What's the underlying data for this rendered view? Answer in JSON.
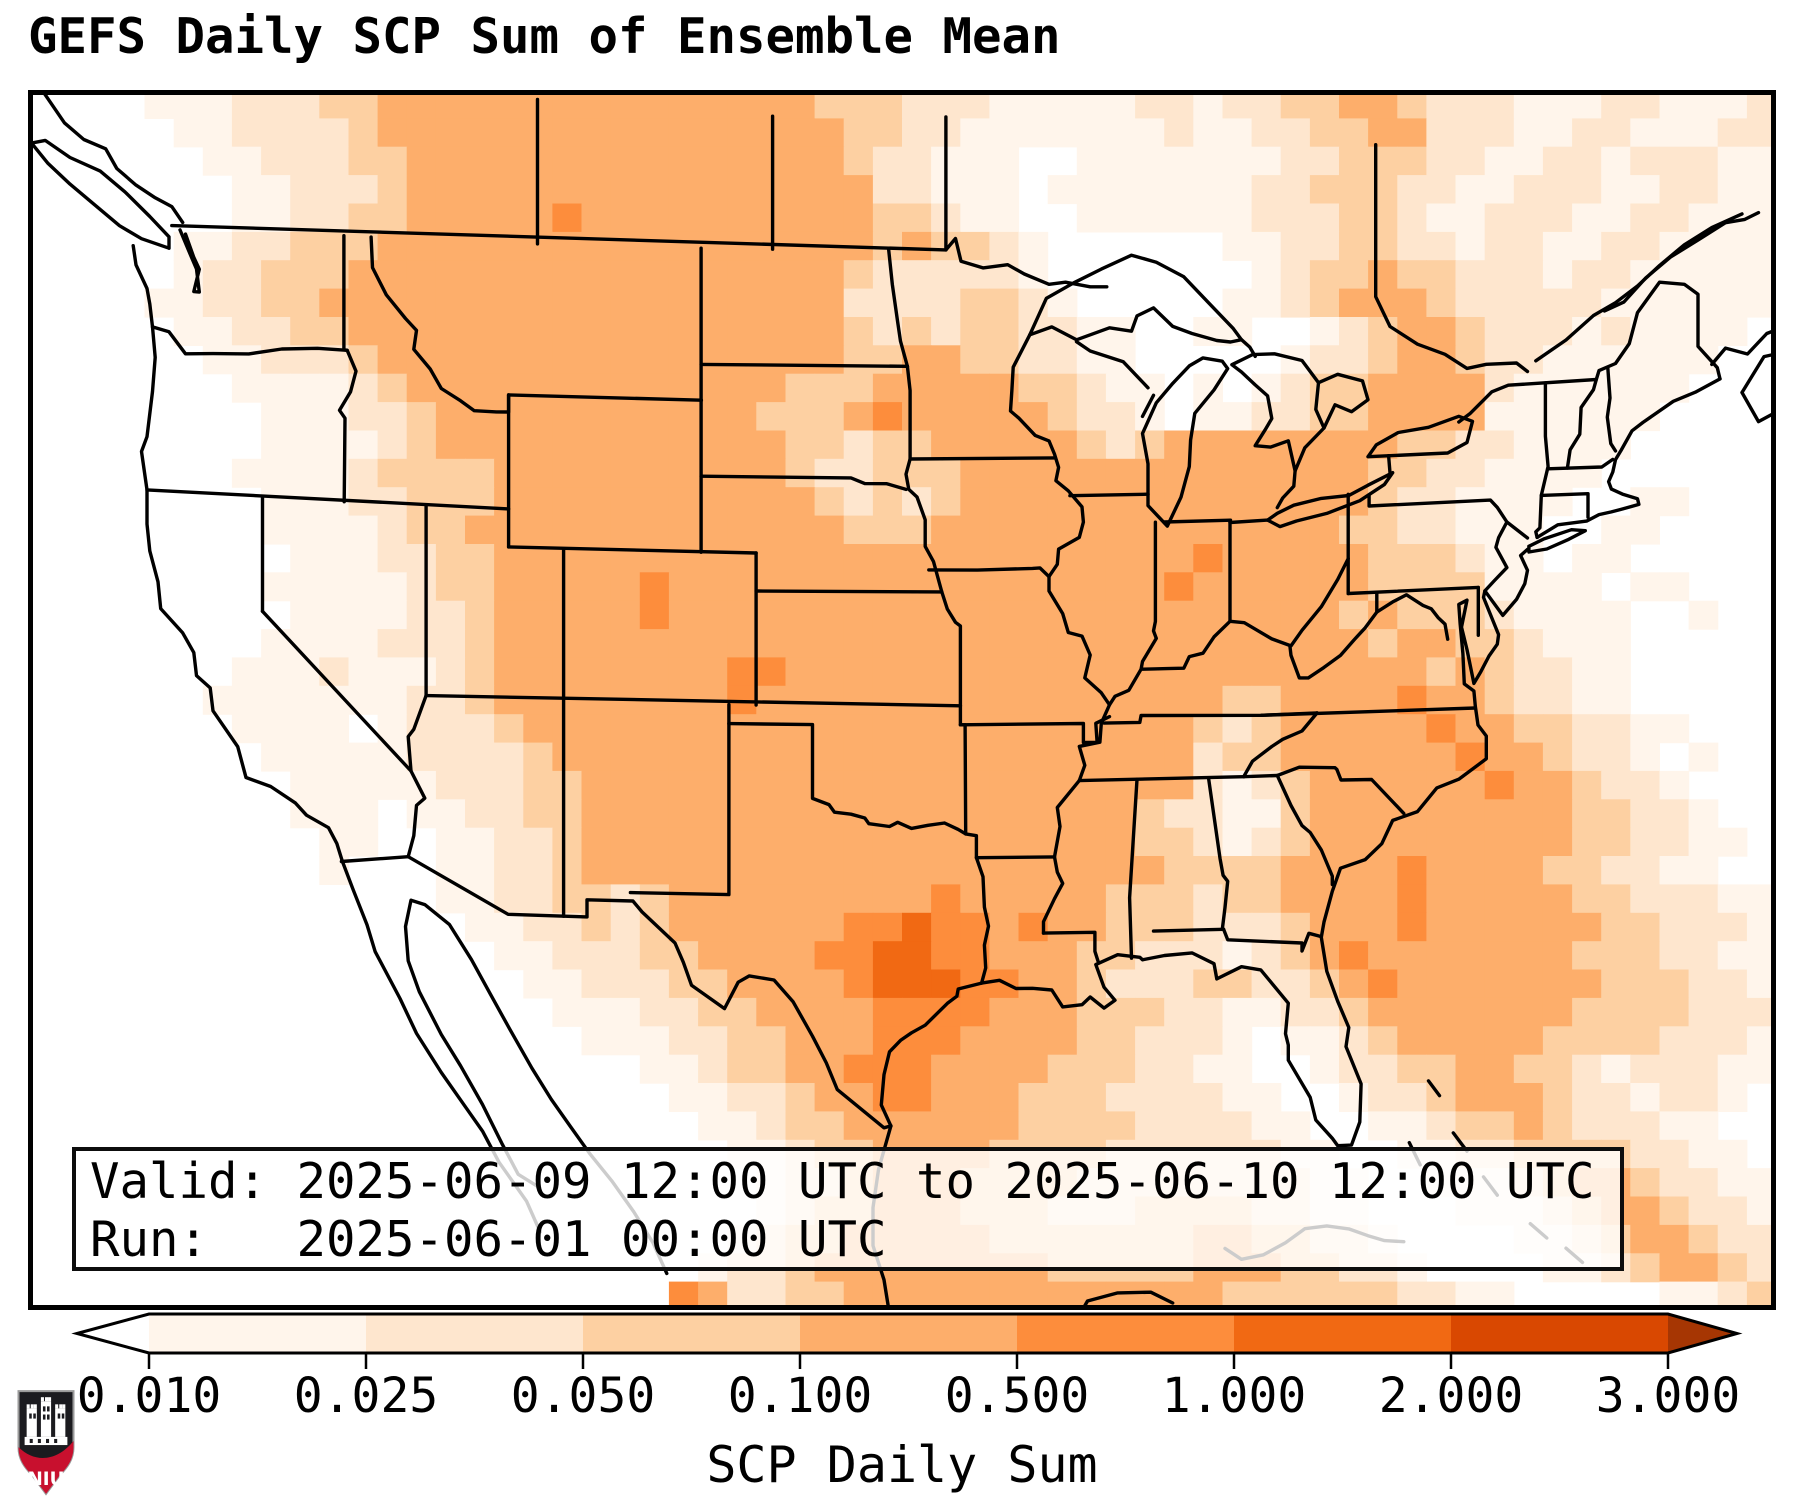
{
  "title": "GEFS Daily SCP Sum of Ensemble Mean",
  "info_box": {
    "line1": "Valid: 2025-06-09 12:00 UTC to 2025-06-10 12:00 UTC",
    "line2": "Run:   2025-06-01 00:00 UTC"
  },
  "colorbar": {
    "label": "SCP Daily Sum",
    "tick_labels": [
      "0.010",
      "0.025",
      "0.050",
      "0.100",
      "0.500",
      "1.000",
      "2.000",
      "3.000"
    ],
    "segment_colors": [
      "#fff5eb",
      "#fee6ce",
      "#fdd0a2",
      "#fdae6b",
      "#fd8d3c",
      "#f16913",
      "#d94801"
    ],
    "under_color": "#ffffff",
    "over_color": "#a63603",
    "outline_color": "#000000"
  },
  "logo": {
    "text": "NIU",
    "shield_black": "#1b1b1f",
    "band_red": "#c8102e"
  },
  "chart_data": {
    "type": "heatmap",
    "title": "GEFS Daily SCP Sum of Ensemble Mean",
    "colorbar_label": "SCP Daily Sum",
    "value_levels": [
      0.01,
      0.025,
      0.05,
      0.1,
      0.5,
      1.0,
      2.0,
      3.0
    ],
    "level_colors": [
      "#ffffff",
      "#fff5eb",
      "#fee6ce",
      "#fdd0a2",
      "#fdae6b",
      "#fd8d3c",
      "#f16913",
      "#d94801",
      "#a63603"
    ],
    "grid_cols": 60,
    "grid_rows": 43,
    "grid_note": "each char is a color level index 0-8 estimated from the plotted field, row 0 = north",
    "grid": [
      "000011122233444444444444444333222111112212233443222111221112",
      "000001122223444444444444444433221111111211223344222112211122",
      "000000112223344444444444444432211100111111122333221122122211",
      "000000011222344444444444444442211101111111223332211222112211",
      "000000011223344444544444444443321100111111222332112221122111",
      "000001122333444444444444444443433210000001122332212211221111",
      "000001223334444444444444444432222210000000123343322212211111",
      "000011223344444444444444444422223321000001123444322222111111",
      "000001122334444444444444444432323322110011001234432221211110",
      "000000112223444444444444444433443322110000012234432211111100",
      "000000011112344444444444443334444433211010123344442111111000",
      "000000001112234444444444433345444443221011223344441111110000",
      "000000001111234444444444443323344444323444444443322111100000",
      "000000011112333344444444443223334444444444444433221111000000",
      "000000001112233344444444444323234444444444444432211110011000",
      "000000001111233444444444444433344444444444444332211100110000",
      "000000000111223344444444444444444444444454444433321101100000",
      "000000001111123344444544444444444444444544444433331111011000",
      "000000000111122344444544444444444444444444444343332111100100",
      "000000001111222344444444444444444444444444444434433211100000",
      "000000011121112344444444554444444444444444444444343221100000",
      "000000111111122344444444544444444444444443344445443221100000",
      "000000011110122234444444444444444444444432344444544332211000",
      "000000001111122223444444444444444444444423344444454432210100",
      "000000000111112223344444444444444444444421234444445443221000",
      "000000000111011223344444444444444444443221134444444443322100",
      "000000000011001122344444444444444444443321234444444443322110",
      "000000000010001122344444444444444444444333344445444433221100",
      "000000000000001122332344444444454444433323344445444443322211",
      "000000000000000112232344444455655454433322234445444444332221",
      "000000000000000011222334444556655444332221234544444443332211",
      "000000000000000001122233444456665544322233223454444444333221",
      "000000000000000000111223344445555444333221122344444443333222",
      "000000000000000000011122334445554444332221011234444433332221",
      "000000000000000000000112334455544443332211001223344332122211",
      "000000000000000000000011223445544433322221100122344432212210",
      "000000000000000000000001123344444433332222110011233432221100",
      "000000000000000000000000112334444333322222211001122333322110",
      "000000000000000000000000012234443333222222221100111234432211",
      "000000000000000000000000012334443332223333221100011123443221",
      "000000000000000000000000123344444333333344332210000112344322",
      "000000000000000000000001223444444443333344433221000011234432",
      "000000000000000000000054223344444444444443333332211000001123443"
    ]
  }
}
